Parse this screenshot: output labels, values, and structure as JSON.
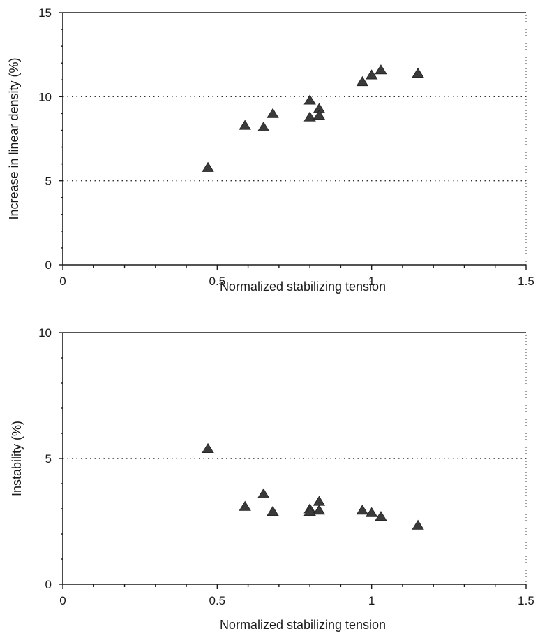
{
  "chart_data": [
    {
      "type": "scatter",
      "title": "",
      "xlabel": "Normalized stabilizing tension",
      "ylabel": "Increase in linear density (%)",
      "xlim": [
        0,
        1.5
      ],
      "ylim": [
        0,
        15
      ],
      "xticks": [
        0,
        0.5,
        1,
        1.5
      ],
      "xtick_labels": [
        "0",
        "0.5",
        "1",
        "1.5"
      ],
      "yticks": [
        0,
        5,
        10,
        15
      ],
      "ytick_labels": [
        "0",
        "5",
        "10",
        "15"
      ],
      "gridlines_y": [
        5,
        10
      ],
      "grid": "horizontal dotted",
      "marker": "triangle",
      "marker_color": "#3a3a3a",
      "series": [
        {
          "x": [
            0.47,
            0.59,
            0.65,
            0.68,
            0.8,
            0.8,
            0.83,
            0.83,
            0.97,
            1.0,
            1.03,
            1.15
          ],
          "y": [
            5.8,
            8.3,
            8.2,
            9.0,
            9.8,
            8.8,
            9.3,
            8.9,
            10.9,
            11.3,
            11.6,
            11.4
          ]
        }
      ]
    },
    {
      "type": "scatter",
      "title": "",
      "xlabel": "Normalized stabilizing tension",
      "ylabel": "Instability (%)",
      "xlim": [
        0,
        1.5
      ],
      "ylim": [
        0,
        10
      ],
      "xticks": [
        0,
        0.5,
        1,
        1.5
      ],
      "xtick_labels": [
        "0",
        "0.5",
        "1",
        "1.5"
      ],
      "yticks": [
        0,
        5,
        10
      ],
      "ytick_labels": [
        "0",
        "5",
        "10"
      ],
      "gridlines_y": [
        5
      ],
      "grid": "horizontal dotted",
      "marker": "triangle",
      "marker_color": "#3a3a3a",
      "series": [
        {
          "x": [
            0.47,
            0.59,
            0.65,
            0.68,
            0.8,
            0.8,
            0.83,
            0.83,
            0.97,
            1.0,
            1.03,
            1.15
          ],
          "y": [
            5.4,
            3.1,
            3.6,
            2.9,
            3.0,
            2.9,
            3.3,
            2.95,
            2.95,
            2.85,
            2.7,
            2.35
          ]
        }
      ]
    }
  ]
}
